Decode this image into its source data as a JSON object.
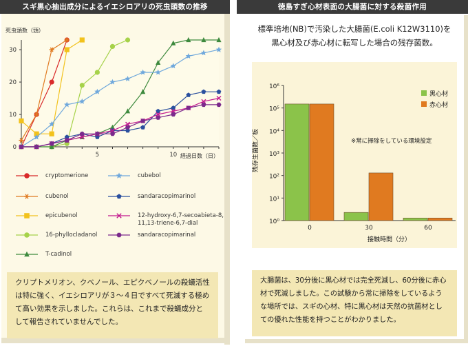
{
  "left": {
    "header": "スギ黒心抽出成分によるイエシロアリの死虫頭数の推移",
    "note": "クリプトメリオン、クベノール、エピクベノールの殺蟻活性は特に強く、イエシロアリが３～４日ですべて死滅する極めて高い効果を示しました。これらは、これまで殺蟻成分として報告されていませんでした。"
  },
  "right": {
    "header": "徳島すぎ心材表面の大腸菌に対する殺菌作用",
    "title_line1": "標準培地(NB)で汚染した大腸菌(E.coli K12W3110)を",
    "title_line2": "黒心材及び赤心材に転写した場合の残存菌数。",
    "annotation": "※常に掃除をしている環境設定",
    "note": "大腸菌は、30分後に黒心材では完全死滅し、60分後に赤心材で死滅しました。この試験から常に掃除をしているような場所では、スギの心材、特に黒心材は天然の抗菌材としての優れた性能を持つことがわかりました。"
  },
  "chart_data": [
    {
      "type": "line",
      "ylabel": "死虫頭数（頭）",
      "xlabel": "経過日数（日）",
      "xlim": [
        0,
        13
      ],
      "ylim": [
        0,
        33
      ],
      "x_ticks": [
        5,
        10
      ],
      "y_ticks": [
        0,
        10,
        20,
        30
      ],
      "legend_position": "bottom",
      "series": [
        {
          "name": "cryptomerione",
          "marker": "circle",
          "color": "#d92a2a",
          "x": [
            0,
            1,
            2,
            3
          ],
          "y": [
            0,
            10,
            20,
            33
          ]
        },
        {
          "name": "cubenol",
          "marker": "asterisk",
          "color": "#e07a20",
          "x": [
            0,
            1,
            2,
            3
          ],
          "y": [
            2,
            10,
            30,
            33
          ]
        },
        {
          "name": "epicubenol",
          "marker": "square",
          "color": "#f2c21c",
          "x": [
            0,
            1,
            2,
            3,
            4
          ],
          "y": [
            8,
            4,
            4,
            30,
            33
          ]
        },
        {
          "name": "16-phyllocladanol",
          "marker": "circle",
          "color": "#a6d24a",
          "x": [
            0,
            1,
            2,
            3,
            4,
            5,
            6,
            7
          ],
          "y": [
            0,
            0,
            0,
            1,
            19,
            23,
            31,
            33
          ]
        },
        {
          "name": "T-cadinol",
          "marker": "triangle",
          "color": "#3e8a3e",
          "x": [
            0,
            1,
            2,
            3,
            4,
            5,
            6,
            7,
            8,
            9,
            10,
            11,
            12,
            13
          ],
          "y": [
            0,
            0,
            0,
            2,
            3,
            4,
            6,
            11,
            17,
            26,
            32,
            33,
            33,
            33
          ]
        },
        {
          "name": "cubebol",
          "marker": "star",
          "color": "#6fa8dc",
          "x": [
            0,
            1,
            2,
            3,
            4,
            5,
            6,
            7,
            8,
            9,
            10,
            11,
            12,
            13
          ],
          "y": [
            0,
            3,
            7,
            13,
            14,
            17,
            20,
            21,
            23,
            23,
            25,
            28,
            29,
            30
          ]
        },
        {
          "name": "sandaracopimarinol",
          "marker": "pentagon",
          "color": "#2a4f9e",
          "x": [
            0,
            1,
            2,
            3,
            4,
            5,
            6,
            7,
            8,
            9,
            10,
            11,
            12,
            13
          ],
          "y": [
            0,
            0,
            1,
            3,
            4,
            3,
            5,
            5,
            6,
            11,
            12,
            16,
            17,
            17
          ]
        },
        {
          "name": "12-hydroxy-6,7-secoabieta-8,11,13-triene-6,7-dial",
          "marker": "x",
          "color": "#c2188e",
          "x": [
            0,
            1,
            2,
            3,
            4,
            5,
            6,
            7,
            8,
            9,
            10,
            11,
            12,
            13
          ],
          "y": [
            0,
            0,
            1,
            2,
            3,
            4,
            5,
            7,
            8,
            10,
            11,
            12,
            14,
            15
          ]
        },
        {
          "name": "sandaracopimarinal",
          "marker": "hexagon",
          "color": "#7b2a8c",
          "x": [
            0,
            1,
            2,
            3,
            4,
            5,
            6,
            7,
            8,
            9,
            10,
            11,
            12,
            13
          ],
          "y": [
            0,
            0,
            1,
            2,
            4,
            4,
            4,
            6,
            8,
            9,
            10,
            12,
            13,
            13
          ]
        }
      ]
    },
    {
      "type": "bar",
      "ylabel": "残存生菌数／板",
      "xlabel": "接触時間（分）",
      "yscale": "log",
      "ylim": [
        1,
        1000000
      ],
      "y_tick_labels": [
        "10⁰",
        "10¹",
        "10²",
        "10³",
        "10⁴",
        "10⁵",
        "10⁶"
      ],
      "categories": [
        "0",
        "30",
        "60"
      ],
      "legend_position": "top-right",
      "series": [
        {
          "name": "黒心材",
          "color": "#8bc34a",
          "values": [
            150000,
            2.3,
            1.3
          ]
        },
        {
          "name": "赤心材",
          "color": "#e07a20",
          "values": [
            150000,
            130,
            1.3
          ]
        }
      ]
    }
  ]
}
